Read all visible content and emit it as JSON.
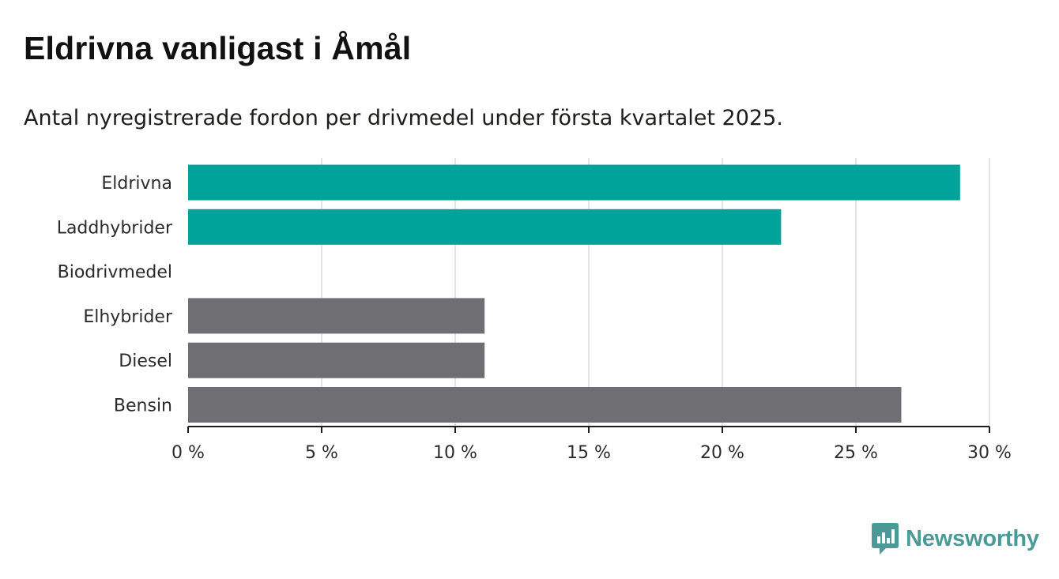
{
  "header": {
    "title": "Eldrivna vanligast i Åmål",
    "subtitle": "Antal nyregistrerade fordon per drivmedel under första kvartalet 2025."
  },
  "chart_data": {
    "type": "bar",
    "orientation": "horizontal",
    "categories": [
      "Eldrivna",
      "Laddhybrider",
      "Biodrivmedel",
      "Elhybrider",
      "Diesel",
      "Bensin"
    ],
    "values": [
      28.9,
      22.2,
      0,
      11.1,
      11.1,
      26.7
    ],
    "colors": [
      "#00a39a",
      "#00a39a",
      "#00a39a",
      "#6f6e73",
      "#6f6e73",
      "#6f6e73"
    ],
    "xlim": [
      0,
      30
    ],
    "xticks": [
      0,
      5,
      10,
      15,
      20,
      25,
      30
    ],
    "tick_labels": [
      "0 %",
      "5 %",
      "10 %",
      "15 %",
      "20 %",
      "25 %",
      "30 %"
    ],
    "grid": "vertical"
  },
  "brand": {
    "name": "Newsworthy",
    "icon": "newsworthy-logo-icon",
    "color": "#4b9a97"
  }
}
